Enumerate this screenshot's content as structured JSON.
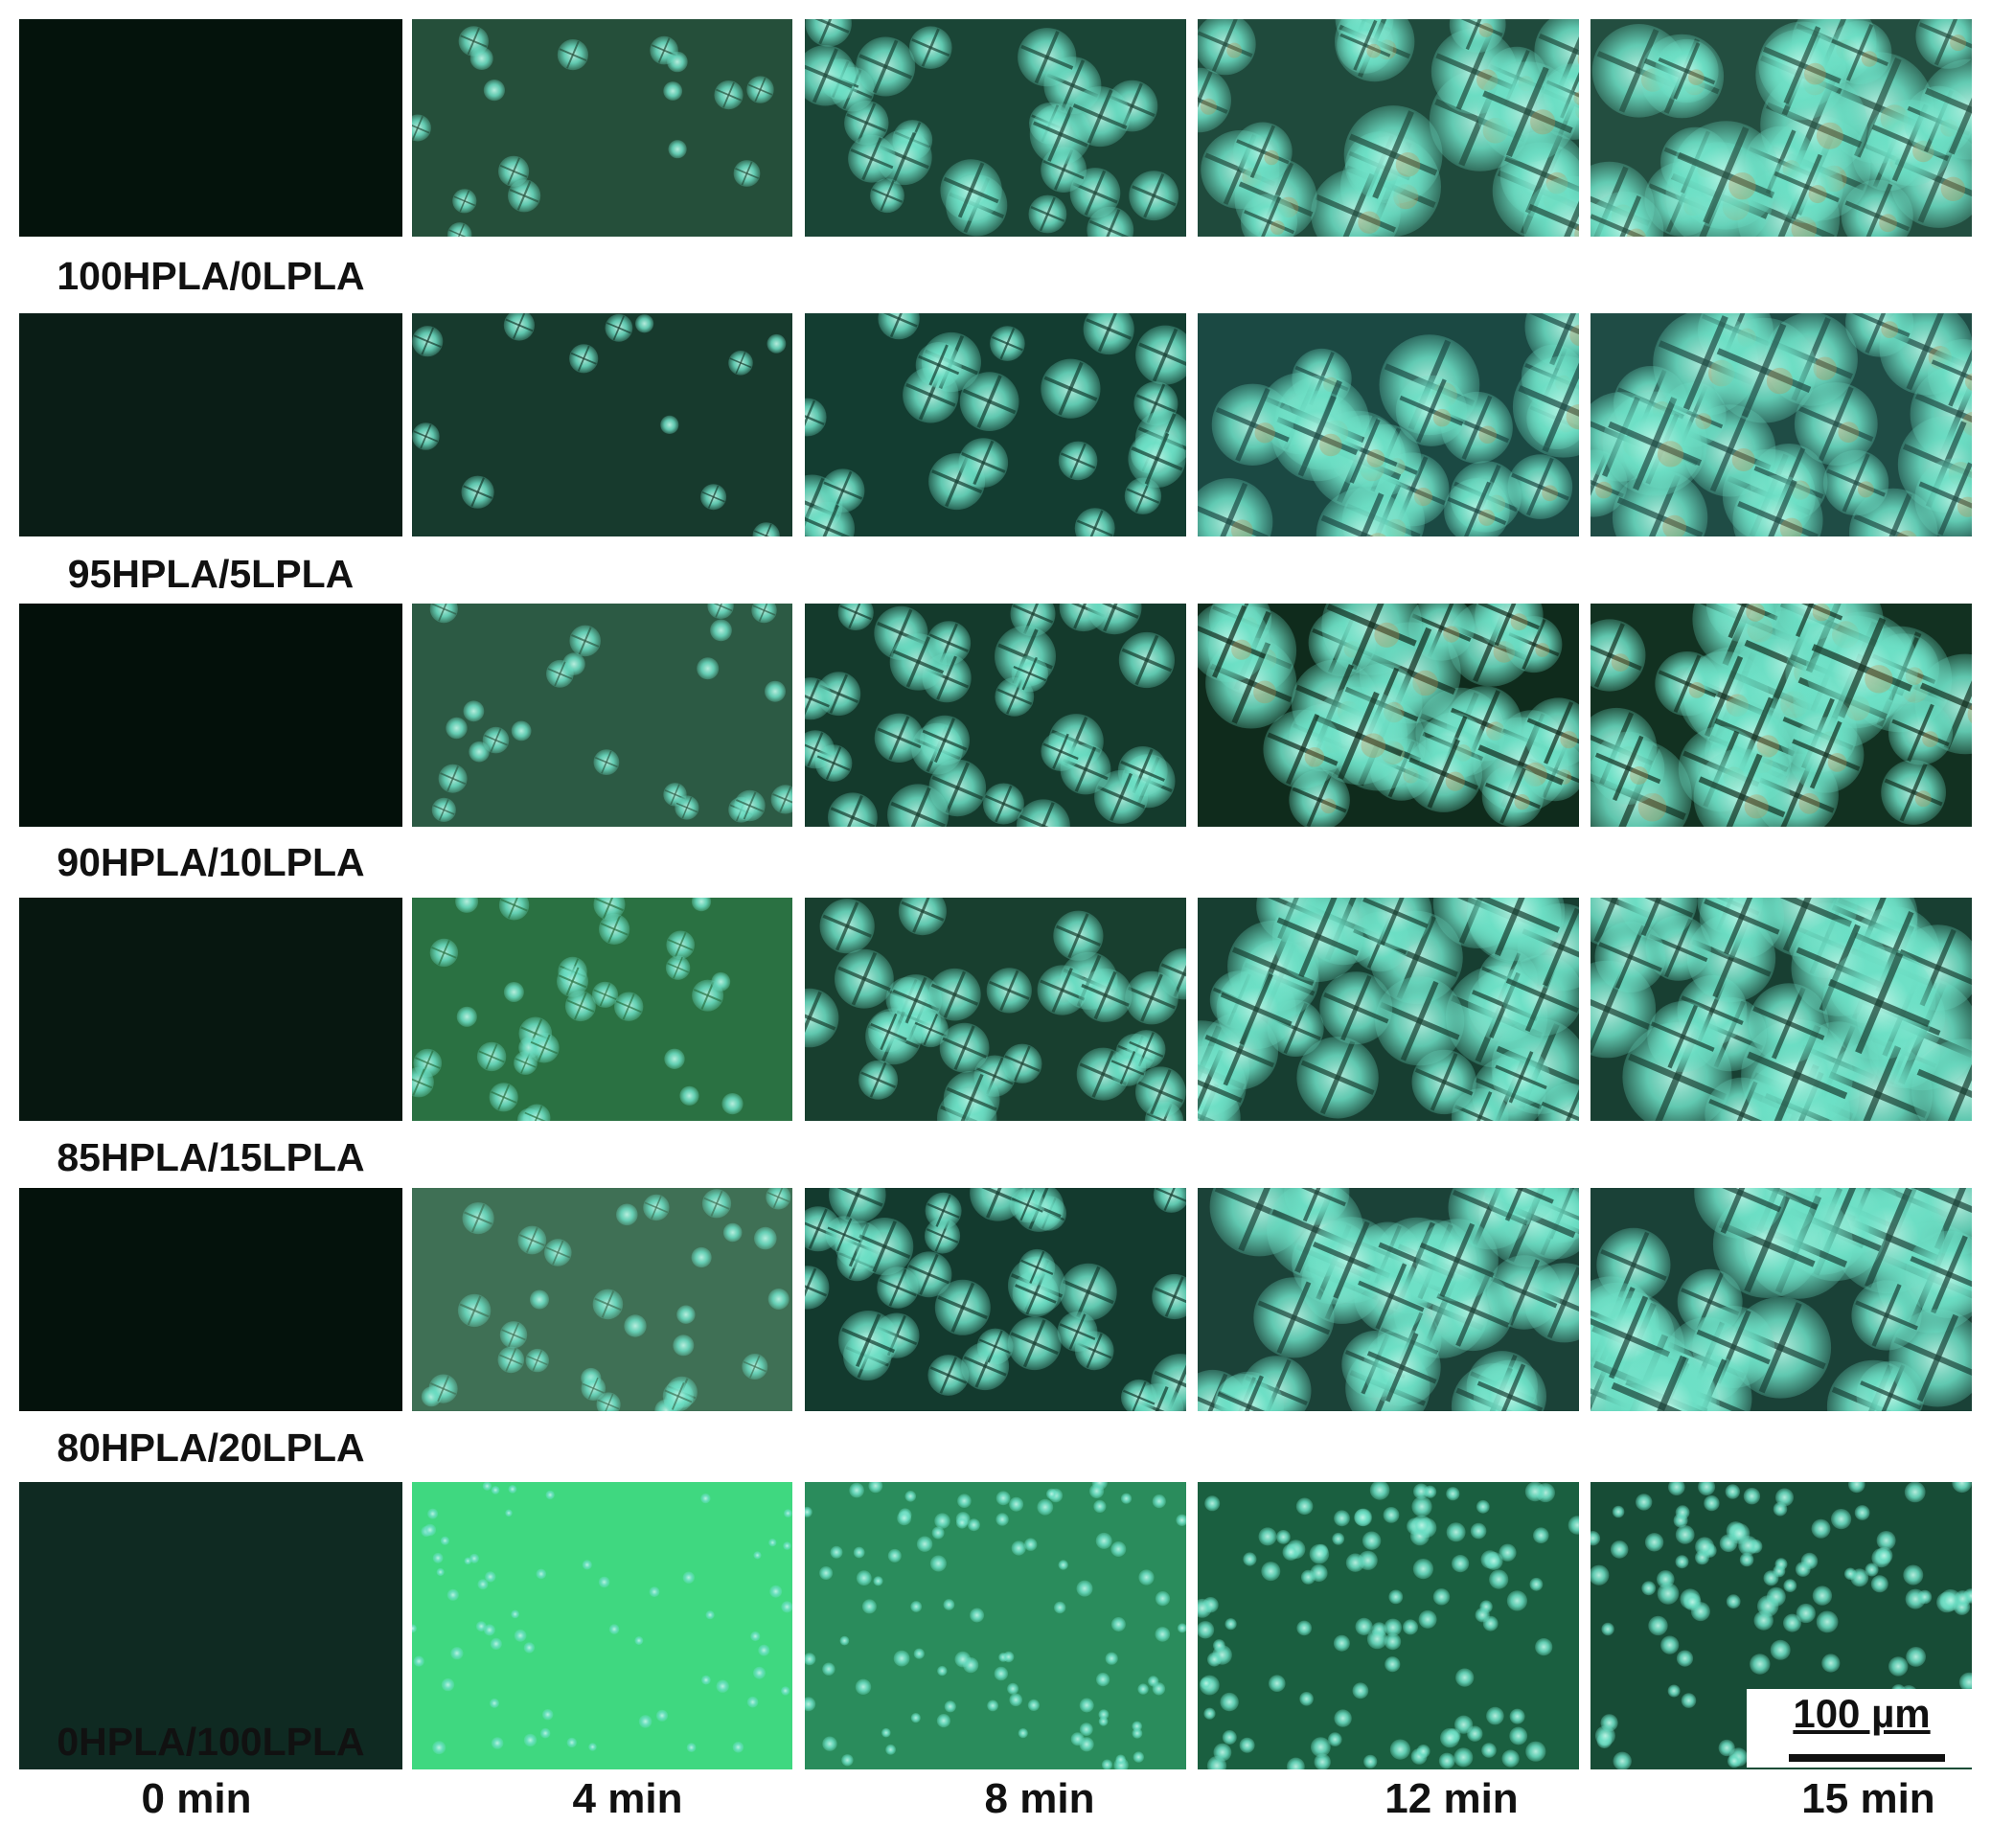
{
  "rows": [
    {
      "label": "100HPLA/0LPLA",
      "colors": [
        "#04130c",
        "#254f3a",
        "#1a4536",
        "#1f4a3c",
        "#234e40"
      ]
    },
    {
      "label": "95HPLA/5LPLA",
      "colors": [
        "#0a1d16",
        "#173a2d",
        "#133d31",
        "#1b4943",
        "#1f4c45"
      ]
    },
    {
      "label": "90HPLA/10LPLA",
      "colors": [
        "#03100a",
        "#2c5a44",
        "#143a2c",
        "#0f2b1c",
        "#123121"
      ]
    },
    {
      "label": "85HPLA/15LPLA",
      "colors": [
        "#071710",
        "#2a7142",
        "#183f2f",
        "#173e31",
        "#183f32"
      ]
    },
    {
      "label": "80HPLA/20LPLA",
      "colors": [
        "#04120c",
        "#3f7055",
        "#133a2e",
        "#1b4238",
        "#1a4137"
      ]
    },
    {
      "label": "0HPLA/100LPLA",
      "colors": [
        "#0f2a22",
        "#3fd880",
        "#2a8c5c",
        "#1a5f40",
        "#174c36"
      ]
    }
  ],
  "columns": [
    "0 min",
    "4 min",
    "8 min",
    "12 min",
    "15 min"
  ],
  "scale_bar": "100 µm",
  "features": {
    "spherulite_color": "#6de0c6",
    "spherulite_highlight": "#bff5e6",
    "warm_tint": "#c58a48",
    "sizes_by_column": [
      0,
      0.16,
      0.42,
      0.78,
      0.9
    ],
    "counts_by_row_col": [
      [
        0,
        16,
        24,
        24,
        26
      ],
      [
        0,
        12,
        22,
        22,
        24
      ],
      [
        0,
        22,
        30,
        28,
        30
      ],
      [
        0,
        30,
        30,
        32,
        34
      ],
      [
        0,
        30,
        34,
        34,
        34
      ],
      [
        0,
        60,
        90,
        100,
        100
      ]
    ]
  }
}
